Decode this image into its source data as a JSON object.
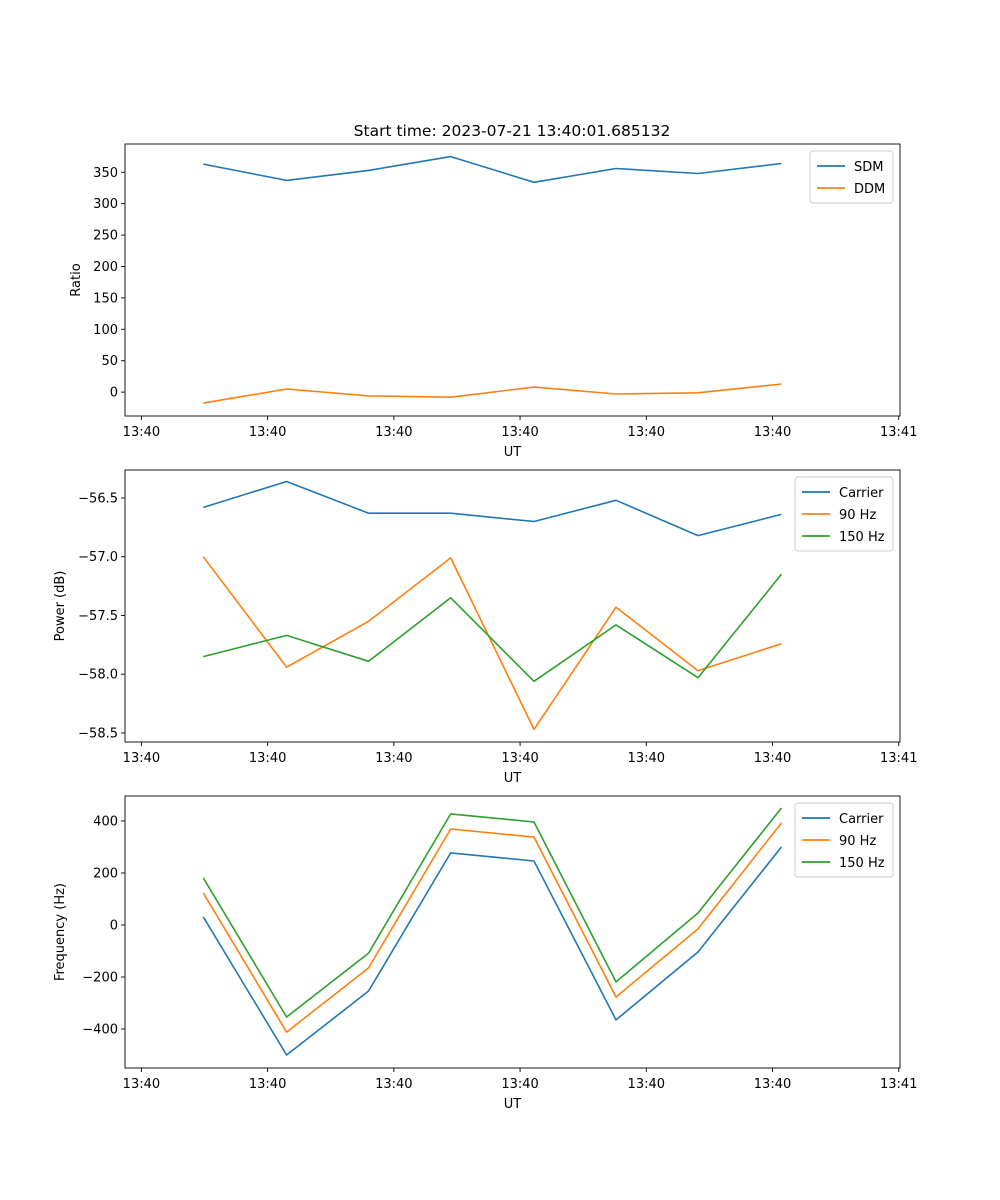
{
  "title": "Start time: 2023-07-21 13:40:01.685132",
  "colors": {
    "blue": "#1f77b4",
    "orange": "#ff7f0e",
    "green": "#2ca02c"
  },
  "chart_data": [
    {
      "type": "line",
      "title": "Start time: 2023-07-21 13:40:01.685132",
      "xlabel": "UT",
      "ylabel": "Ratio",
      "x_unit": "seconds after 13:40:00",
      "x": [
        4.9,
        11.5,
        18.0,
        24.5,
        31.1,
        37.6,
        44.1,
        50.7
      ],
      "xlim": [
        -1.3,
        60.1
      ],
      "xticks": [
        0,
        10,
        20,
        30,
        40,
        50,
        60
      ],
      "xtick_labels": [
        "13:40",
        "13:40",
        "13:40",
        "13:40",
        "13:40",
        "13:40",
        "13:41"
      ],
      "ylim": [
        -38,
        395
      ],
      "yticks": [
        0,
        50,
        100,
        150,
        200,
        250,
        300,
        350
      ],
      "ytick_labels": [
        "0",
        "50",
        "100",
        "150",
        "200",
        "250",
        "300",
        "350"
      ],
      "legend": "top-right",
      "series": [
        {
          "name": "SDM",
          "color": "#1f77b4",
          "values": [
            363,
            337,
            353,
            375,
            334,
            356,
            348,
            364
          ]
        },
        {
          "name": "DDM",
          "color": "#ff7f0e",
          "values": [
            -17.5,
            5,
            -6,
            -8,
            8,
            -3,
            -1,
            13
          ]
        }
      ]
    },
    {
      "type": "line",
      "title": "",
      "xlabel": "UT",
      "ylabel": "Power (dB)",
      "x_unit": "seconds after 13:40:00",
      "x": [
        4.9,
        11.5,
        18.0,
        24.5,
        31.1,
        37.6,
        44.1,
        50.7
      ],
      "xlim": [
        -1.3,
        60.1
      ],
      "xticks": [
        0,
        10,
        20,
        30,
        40,
        50,
        60
      ],
      "xtick_labels": [
        "13:40",
        "13:40",
        "13:40",
        "13:40",
        "13:40",
        "13:40",
        "13:41"
      ],
      "ylim": [
        -58.577,
        -56.262
      ],
      "yticks": [
        -56.5,
        -57.0,
        -57.5,
        -58.0,
        -58.5
      ],
      "ytick_labels": [
        "−56.5",
        "−57.0",
        "−57.5",
        "−58.0",
        "−58.5"
      ],
      "legend": "top-right",
      "series": [
        {
          "name": "Carrier",
          "color": "#1f77b4",
          "values": [
            -56.58,
            -56.36,
            -56.63,
            -56.63,
            -56.7,
            -56.52,
            -56.82,
            -56.64
          ]
        },
        {
          "name": "90 Hz",
          "color": "#ff7f0e",
          "values": [
            -57.0,
            -57.94,
            -57.55,
            -57.01,
            -58.47,
            -57.43,
            -57.97,
            -57.74
          ]
        },
        {
          "name": "150 Hz",
          "color": "#2ca02c",
          "values": [
            -57.85,
            -57.67,
            -57.89,
            -57.35,
            -58.06,
            -57.58,
            -58.03,
            -57.15
          ]
        }
      ]
    },
    {
      "type": "line",
      "title": "",
      "xlabel": "UT",
      "ylabel": "Frequency (Hz)",
      "x_unit": "seconds after 13:40:00",
      "x": [
        4.9,
        11.5,
        18.0,
        24.5,
        31.1,
        37.6,
        44.1,
        50.7
      ],
      "xlim": [
        -1.3,
        60.1
      ],
      "xticks": [
        0,
        10,
        20,
        30,
        40,
        50,
        60
      ],
      "xtick_labels": [
        "13:40",
        "13:40",
        "13:40",
        "13:40",
        "13:40",
        "13:40",
        "13:41"
      ],
      "ylim": [
        -550,
        496
      ],
      "yticks": [
        -400,
        -200,
        0,
        200,
        400
      ],
      "ytick_labels": [
        "−400",
        "−200",
        "0",
        "200",
        "400"
      ],
      "legend": "top-right",
      "series": [
        {
          "name": "Carrier",
          "color": "#1f77b4",
          "values": [
            31,
            -500,
            -254,
            277,
            246,
            -365,
            -104,
            300
          ]
        },
        {
          "name": "90 Hz",
          "color": "#ff7f0e",
          "values": [
            123,
            -412,
            -165,
            369,
            338,
            -277,
            -15,
            392
          ]
        },
        {
          "name": "150 Hz",
          "color": "#2ca02c",
          "values": [
            181,
            -354,
            -108,
            427,
            396,
            -219,
            46,
            450
          ]
        }
      ]
    }
  ]
}
